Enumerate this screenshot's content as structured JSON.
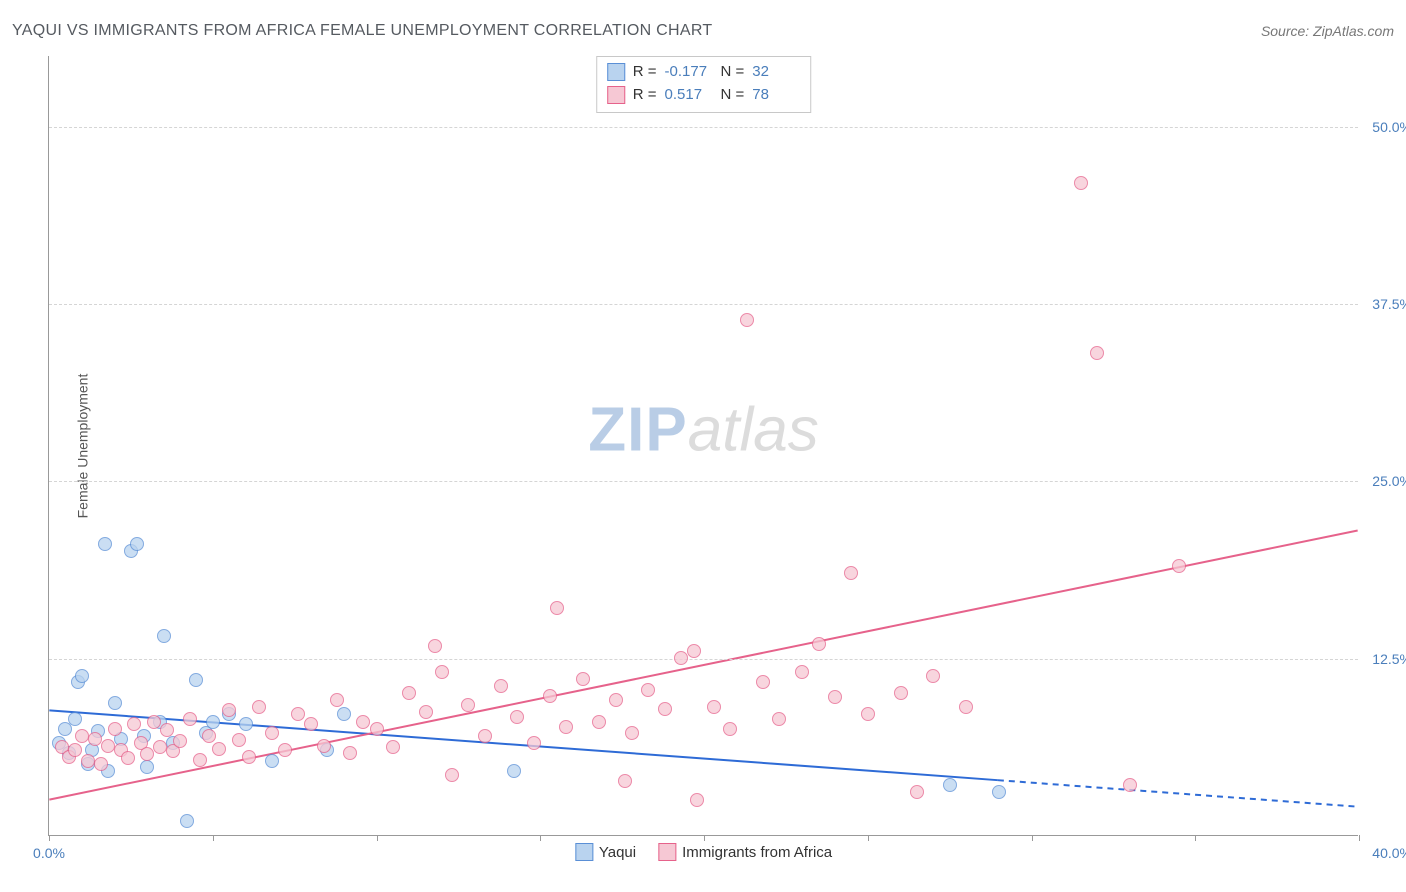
{
  "header": {
    "title": "YAQUI VS IMMIGRANTS FROM AFRICA FEMALE UNEMPLOYMENT CORRELATION CHART",
    "source_label": "Source: ZipAtlas.com"
  },
  "y_axis_label": "Female Unemployment",
  "watermark": {
    "zip": "ZIP",
    "atlas": "atlas"
  },
  "chart": {
    "type": "scatter",
    "xlim": [
      0,
      40
    ],
    "ylim": [
      0,
      55
    ],
    "x_ticks": [
      0,
      5,
      10,
      15,
      20,
      25,
      30,
      35,
      40
    ],
    "x_tick_labels": {
      "0": "0.0%",
      "40": "40.0%"
    },
    "y_ticks": [
      12.5,
      25.0,
      37.5,
      50.0
    ],
    "y_tick_labels": [
      "12.5%",
      "25.0%",
      "37.5%",
      "50.0%"
    ],
    "background_color": "#ffffff",
    "grid_color": "#d5d5d5",
    "marker_radius": 7,
    "series": [
      {
        "key": "yaqui",
        "label": "Yaqui",
        "fill": "#b9d3ef",
        "stroke": "#5a8fd6",
        "R": "-0.177",
        "N": "32",
        "trend": {
          "x1": 0,
          "y1": 8.8,
          "x2": 40,
          "y2": 2.0,
          "solid_until_x": 29,
          "color": "#2e6bd6",
          "width": 2
        },
        "points": [
          [
            0.3,
            6.5
          ],
          [
            0.5,
            7.5
          ],
          [
            0.6,
            5.8
          ],
          [
            0.8,
            8.2
          ],
          [
            0.9,
            10.8
          ],
          [
            1.0,
            11.2
          ],
          [
            1.2,
            5.0
          ],
          [
            1.3,
            6.0
          ],
          [
            1.5,
            7.3
          ],
          [
            1.7,
            20.5
          ],
          [
            1.8,
            4.5
          ],
          [
            2.0,
            9.3
          ],
          [
            2.2,
            6.8
          ],
          [
            2.5,
            20.0
          ],
          [
            2.7,
            20.5
          ],
          [
            2.9,
            7.0
          ],
          [
            3.0,
            4.8
          ],
          [
            3.4,
            8.0
          ],
          [
            3.5,
            14.0
          ],
          [
            3.8,
            6.5
          ],
          [
            4.2,
            1.0
          ],
          [
            4.5,
            10.9
          ],
          [
            4.8,
            7.2
          ],
          [
            5.0,
            8.0
          ],
          [
            5.5,
            8.5
          ],
          [
            6.0,
            7.8
          ],
          [
            6.8,
            5.2
          ],
          [
            8.5,
            6.0
          ],
          [
            9.0,
            8.5
          ],
          [
            14.2,
            4.5
          ],
          [
            27.5,
            3.5
          ],
          [
            29.0,
            3.0
          ]
        ]
      },
      {
        "key": "africa",
        "label": "Immigrants from Africa",
        "fill": "#f6c8d4",
        "stroke": "#e6628b",
        "R": "0.517",
        "N": "78",
        "trend": {
          "x1": 0,
          "y1": 2.5,
          "x2": 40,
          "y2": 21.5,
          "solid_until_x": 40,
          "color": "#e6628b",
          "width": 2
        },
        "points": [
          [
            0.4,
            6.2
          ],
          [
            0.6,
            5.5
          ],
          [
            0.8,
            6.0
          ],
          [
            1.0,
            7.0
          ],
          [
            1.2,
            5.2
          ],
          [
            1.4,
            6.8
          ],
          [
            1.6,
            5.0
          ],
          [
            1.8,
            6.3
          ],
          [
            2.0,
            7.5
          ],
          [
            2.2,
            6.0
          ],
          [
            2.4,
            5.4
          ],
          [
            2.6,
            7.8
          ],
          [
            2.8,
            6.5
          ],
          [
            3.0,
            5.7
          ],
          [
            3.2,
            8.0
          ],
          [
            3.4,
            6.2
          ],
          [
            3.6,
            7.4
          ],
          [
            3.8,
            5.9
          ],
          [
            4.0,
            6.6
          ],
          [
            4.3,
            8.2
          ],
          [
            4.6,
            5.3
          ],
          [
            4.9,
            7.0
          ],
          [
            5.2,
            6.1
          ],
          [
            5.5,
            8.8
          ],
          [
            5.8,
            6.7
          ],
          [
            6.1,
            5.5
          ],
          [
            6.4,
            9.0
          ],
          [
            6.8,
            7.2
          ],
          [
            7.2,
            6.0
          ],
          [
            7.6,
            8.5
          ],
          [
            8.0,
            7.8
          ],
          [
            8.4,
            6.3
          ],
          [
            8.8,
            9.5
          ],
          [
            9.2,
            5.8
          ],
          [
            9.6,
            8.0
          ],
          [
            10.0,
            7.5
          ],
          [
            10.5,
            6.2
          ],
          [
            11.0,
            10.0
          ],
          [
            11.5,
            8.7
          ],
          [
            11.8,
            13.3
          ],
          [
            12.0,
            11.5
          ],
          [
            12.3,
            4.2
          ],
          [
            12.8,
            9.2
          ],
          [
            13.3,
            7.0
          ],
          [
            13.8,
            10.5
          ],
          [
            14.3,
            8.3
          ],
          [
            14.8,
            6.5
          ],
          [
            15.3,
            9.8
          ],
          [
            15.5,
            16.0
          ],
          [
            15.8,
            7.6
          ],
          [
            16.3,
            11.0
          ],
          [
            16.8,
            8.0
          ],
          [
            17.3,
            9.5
          ],
          [
            17.6,
            3.8
          ],
          [
            17.8,
            7.2
          ],
          [
            18.3,
            10.2
          ],
          [
            18.8,
            8.9
          ],
          [
            19.3,
            12.5
          ],
          [
            19.7,
            13.0
          ],
          [
            19.8,
            2.5
          ],
          [
            20.3,
            9.0
          ],
          [
            20.8,
            7.5
          ],
          [
            21.3,
            36.3
          ],
          [
            21.8,
            10.8
          ],
          [
            22.3,
            8.2
          ],
          [
            23.0,
            11.5
          ],
          [
            23.5,
            13.5
          ],
          [
            24.0,
            9.7
          ],
          [
            24.5,
            18.5
          ],
          [
            25.0,
            8.5
          ],
          [
            26.0,
            10.0
          ],
          [
            26.5,
            3.0
          ],
          [
            27.0,
            11.2
          ],
          [
            28.0,
            9.0
          ],
          [
            31.5,
            46.0
          ],
          [
            32.0,
            34.0
          ],
          [
            33.0,
            3.5
          ],
          [
            34.5,
            19.0
          ]
        ]
      }
    ]
  }
}
